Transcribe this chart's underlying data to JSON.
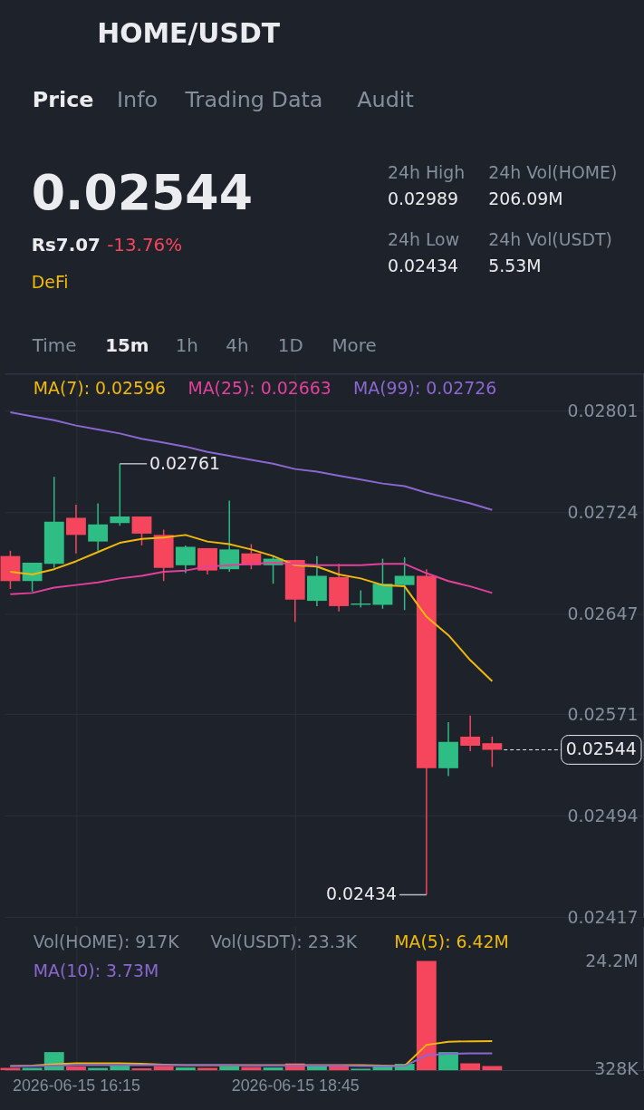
{
  "chart_data": [
    {
      "type": "other",
      "title": "HOME/USDT",
      "annotations": [
        "Price",
        "Info",
        "Trading Data",
        "Audit",
        "0.02544",
        "Rs7.07",
        "-13.76%",
        "DeFi",
        "24h High",
        "0.02989",
        "24h Low",
        "0.02434",
        "24h Vol(HOME)",
        "206.09M",
        "24h Vol(USDT)",
        "5.53M",
        "Time",
        "15m",
        "1h",
        "4h",
        "1D",
        "More"
      ]
    },
    {
      "type": "candlestick",
      "x": [
        "2026-06-15T15:30",
        "2026-06-15T15:45",
        "2026-06-15T16:00",
        "2026-06-15T16:15",
        "2026-06-15T16:30",
        "2026-06-15T16:45",
        "2026-06-15T17:00",
        "2026-06-15T17:15",
        "2026-06-15T17:30",
        "2026-06-15T17:45",
        "2026-06-15T18:00",
        "2026-06-15T18:15",
        "2026-06-15T18:30",
        "2026-06-15T18:45",
        "2026-06-15T19:00",
        "2026-06-15T19:15",
        "2026-06-15T19:30",
        "2026-06-15T19:45",
        "2026-06-15T20:00",
        "2026-06-15T20:15",
        "2026-06-15T20:30",
        "2026-06-15T20:45",
        "2026-06-15T21:00"
      ],
      "ohlc": [
        [
          0.02691,
          0.02695,
          0.02666,
          0.02672
        ],
        [
          0.02672,
          0.02686,
          0.02664,
          0.02686
        ],
        [
          0.02685,
          0.02751,
          0.02682,
          0.02717
        ],
        [
          0.0272,
          0.0273,
          0.02693,
          0.02707
        ],
        [
          0.02702,
          0.02731,
          0.02695,
          0.02715
        ],
        [
          0.02716,
          0.02761,
          0.02714,
          0.02721
        ],
        [
          0.02721,
          0.02721,
          0.02699,
          0.02708
        ],
        [
          0.02707,
          0.02711,
          0.02672,
          0.02682
        ],
        [
          0.02684,
          0.02699,
          0.02678,
          0.02698
        ],
        [
          0.02697,
          0.02697,
          0.02677,
          0.0268
        ],
        [
          0.02681,
          0.02733,
          0.02679,
          0.02696
        ],
        [
          0.02693,
          0.027,
          0.02681,
          0.02684
        ],
        [
          0.02684,
          0.02691,
          0.0267,
          0.02689
        ],
        [
          0.02688,
          0.02688,
          0.02641,
          0.02658
        ],
        [
          0.02657,
          0.02691,
          0.02653,
          0.02676
        ],
        [
          0.02675,
          0.02685,
          0.02649,
          0.02653
        ],
        [
          0.02654,
          0.02665,
          0.02652,
          0.02655
        ],
        [
          0.02654,
          0.02689,
          0.02651,
          0.0267
        ],
        [
          0.02669,
          0.0269,
          0.0265,
          0.02676
        ],
        [
          0.02676,
          0.02681,
          0.02434,
          0.0253
        ],
        [
          0.0253,
          0.02565,
          0.02524,
          0.0255
        ],
        [
          0.02554,
          0.0257,
          0.02543,
          0.02547
        ],
        [
          0.02549,
          0.02554,
          0.02531,
          0.02544
        ]
      ],
      "colors": [
        "#f6465d",
        "#2ebd85",
        "#2ebd85",
        "#f6465d",
        "#2ebd85",
        "#2ebd85",
        "#f6465d",
        "#f6465d",
        "#2ebd85",
        "#f6465d",
        "#2ebd85",
        "#f6465d",
        "#2ebd85",
        "#f6465d",
        "#2ebd85",
        "#f6465d",
        "#2ebd85",
        "#2ebd85",
        "#2ebd85",
        "#f6465d",
        "#2ebd85",
        "#f6465d",
        "#f6465d"
      ],
      "series": [
        {
          "type": "line",
          "name": "MA(7): 0.02596",
          "color": "#f0b90b",
          "values": [
            0.02679,
            0.02677,
            0.02681,
            0.02687,
            0.02694,
            0.02701,
            0.02704,
            0.02705,
            0.02707,
            0.02702,
            0.027,
            0.02696,
            0.02691,
            0.02684,
            0.02683,
            0.02677,
            0.02674,
            0.02669,
            0.02668,
            0.02645,
            0.02631,
            0.02612,
            0.02596
          ]
        },
        {
          "type": "line",
          "name": "MA(25): 0.02663",
          "color": "#e2409b",
          "values": [
            0.02662,
            0.02663,
            0.02667,
            0.02669,
            0.02671,
            0.02674,
            0.02676,
            0.02679,
            0.0268,
            0.02683,
            0.02684,
            0.02685,
            0.02686,
            0.02685,
            0.02684,
            0.02684,
            0.02684,
            0.02685,
            0.02685,
            0.02678,
            0.02672,
            0.02668,
            0.02663
          ]
        },
        {
          "type": "line",
          "name": "MA(99): 0.02726",
          "color": "#8b67d0",
          "values": [
            0.028,
            0.02797,
            0.02794,
            0.0279,
            0.02787,
            0.02784,
            0.0278,
            0.02777,
            0.02774,
            0.0277,
            0.02767,
            0.02764,
            0.02761,
            0.02757,
            0.02755,
            0.02752,
            0.02749,
            0.02746,
            0.02744,
            0.02739,
            0.02735,
            0.02731,
            0.02726
          ]
        }
      ],
      "xlim": [
        "2026-06-15T15:26",
        "2026-06-15T22:44"
      ],
      "xticks": [
        "2026-06-15T16:15",
        "2026-06-15T18:45"
      ],
      "ylim": [
        0.02417,
        0.0283
      ],
      "yticks": [
        0.02417,
        0.02494,
        0.02571,
        0.02647,
        0.02724,
        0.02801
      ],
      "tick_labels": "y",
      "grid": true,
      "legend": "top left",
      "annotations": [
        {
          "text": "0.02761",
          "x": "2026-06-15T16:45",
          "y": 0.02761
        },
        {
          "text": "0.02434",
          "x": "2026-06-15T20:15",
          "y": 0.02434
        }
      ],
      "ref_lines": [
        {
          "axis": "y",
          "value": 0.02544,
          "label": "0.02544",
          "color": "#eaecef",
          "line_style": "dashed"
        }
      ]
    },
    {
      "type": "bar",
      "x": [
        "2026-06-15T15:30",
        "2026-06-15T15:45",
        "2026-06-15T16:00",
        "2026-06-15T16:15",
        "2026-06-15T16:30",
        "2026-06-15T16:45",
        "2026-06-15T17:00",
        "2026-06-15T17:15",
        "2026-06-15T17:30",
        "2026-06-15T17:45",
        "2026-06-15T18:00",
        "2026-06-15T18:15",
        "2026-06-15T18:30",
        "2026-06-15T18:45",
        "2026-06-15T19:00",
        "2026-06-15T19:15",
        "2026-06-15T19:30",
        "2026-06-15T19:45",
        "2026-06-15T20:00",
        "2026-06-15T20:15",
        "2026-06-15T20:30",
        "2026-06-15T20:45",
        "2026-06-15T21:00"
      ],
      "series": [
        {
          "type": "bar",
          "colors": [
            "#f6465d",
            "#2ebd85",
            "#2ebd85",
            "#f6465d",
            "#2ebd85",
            "#2ebd85",
            "#f6465d",
            "#f6465d",
            "#2ebd85",
            "#f6465d",
            "#2ebd85",
            "#f6465d",
            "#2ebd85",
            "#f6465d",
            "#2ebd85",
            "#f6465d",
            "#2ebd85",
            "#2ebd85",
            "#2ebd85",
            "#f6465d",
            "#2ebd85",
            "#f6465d",
            "#f6465d"
          ],
          "values": [
            500000,
            500000,
            4000000,
            800000,
            500000,
            1200000,
            400000,
            900000,
            600000,
            500000,
            900000,
            700000,
            600000,
            1500000,
            900000,
            900000,
            328000,
            900000,
            1400000,
            24200000,
            4000000,
            1500000,
            917000
          ]
        },
        {
          "type": "line",
          "name": "MA(5): 6.42M",
          "color": "#f0b90b",
          "values": [
            900000,
            1000000,
            1300000,
            1500000,
            1500000,
            1500000,
            1400000,
            1200000,
            1100000,
            1100000,
            1100000,
            1100000,
            1100000,
            1100000,
            1100000,
            1100000,
            1100000,
            1000000,
            900000,
            5600000,
            6300000,
            6400000,
            6420000
          ]
        },
        {
          "type": "line",
          "name": "MA(10): 3.73M",
          "color": "#8b67d0",
          "values": [
            900000,
            900000,
            1000000,
            1100000,
            1100000,
            1100000,
            1100000,
            1100000,
            1100000,
            1100000,
            1100000,
            1000000,
            1000000,
            1000000,
            1000000,
            1000000,
            900000,
            900000,
            900000,
            3300000,
            3600000,
            3700000,
            3730000
          ]
        }
      ],
      "xlim": [
        "2026-06-15T15:26",
        "2026-06-15T22:44"
      ],
      "xticks": [
        {
          "value": "2026-06-15T16:15",
          "label": "2026-06-15 16:15"
        },
        {
          "value": "2026-06-15T18:45",
          "label": "2026-06-15 18:45"
        }
      ],
      "ylim": [
        0,
        31900000
      ],
      "yticks": [
        {
          "value": 328000,
          "label": "328K"
        },
        {
          "value": 24200000,
          "label": "24.2M"
        }
      ],
      "grid": "x",
      "legend": "top left",
      "annotations": [
        "Vol(HOME): 917K",
        "Vol(USDT): 23.3K"
      ]
    }
  ]
}
